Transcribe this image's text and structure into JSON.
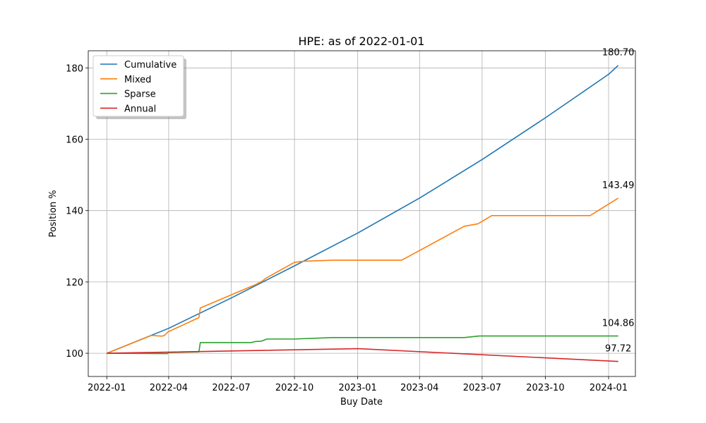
{
  "chart_data": {
    "type": "line",
    "title": "HPE: as of 2022-01-01",
    "xlabel": "Buy Date",
    "ylabel": "Position %",
    "x_ticks": [
      "2022-01",
      "2022-04",
      "2022-07",
      "2022-10",
      "2023-01",
      "2023-04",
      "2023-07",
      "2023-10",
      "2024-01"
    ],
    "y_ticks": [
      100,
      120,
      140,
      160,
      180
    ],
    "xlim": [
      "2021-12-05",
      "2024-02-09"
    ],
    "ylim": [
      93.5,
      184.8
    ],
    "grid": true,
    "legend_position": "top-left",
    "series": [
      {
        "name": "Cumulative",
        "color": "#1f77b4",
        "end_label": "180.70",
        "points": [
          [
            "2022-01-01",
            100.0
          ],
          [
            "2022-04-01",
            107.0
          ],
          [
            "2022-07-01",
            115.5
          ],
          [
            "2022-10-01",
            124.5
          ],
          [
            "2023-01-01",
            133.7
          ],
          [
            "2023-04-01",
            143.5
          ],
          [
            "2023-07-01",
            154.3
          ],
          [
            "2023-10-01",
            166.0
          ],
          [
            "2024-01-01",
            178.2
          ],
          [
            "2024-01-15",
            180.7
          ]
        ]
      },
      {
        "name": "Mixed",
        "color": "#ff7f0e",
        "end_label": "143.49",
        "points": [
          [
            "2022-01-01",
            100.0
          ],
          [
            "2022-03-07",
            105.0
          ],
          [
            "2022-03-22",
            104.8
          ],
          [
            "2022-03-26",
            105.0
          ],
          [
            "2022-03-31",
            106.0
          ],
          [
            "2022-05-15",
            110.0
          ],
          [
            "2022-05-17",
            112.7
          ],
          [
            "2022-07-27",
            118.5
          ],
          [
            "2022-08-05",
            119.2
          ],
          [
            "2022-08-15",
            120.2
          ],
          [
            "2022-08-20",
            121.0
          ],
          [
            "2022-10-01",
            125.5
          ],
          [
            "2022-10-15",
            125.8
          ],
          [
            "2022-11-25",
            126.1
          ],
          [
            "2023-03-06",
            126.1
          ],
          [
            "2023-06-05",
            135.6
          ],
          [
            "2023-06-25",
            136.3
          ],
          [
            "2023-07-15",
            138.6
          ],
          [
            "2023-12-05",
            138.6
          ],
          [
            "2024-01-15",
            143.49
          ]
        ]
      },
      {
        "name": "Sparse",
        "color": "#2ca02c",
        "end_label": "104.86",
        "points": [
          [
            "2022-01-01",
            100.0
          ],
          [
            "2022-03-30",
            99.9
          ],
          [
            "2022-04-01",
            100.2
          ],
          [
            "2022-05-15",
            100.4
          ],
          [
            "2022-05-17",
            103.0
          ],
          [
            "2022-07-30",
            103.0
          ],
          [
            "2022-08-05",
            103.3
          ],
          [
            "2022-08-14",
            103.4
          ],
          [
            "2022-08-22",
            104.0
          ],
          [
            "2022-10-01",
            104.0
          ],
          [
            "2022-11-25",
            104.4
          ],
          [
            "2023-06-05",
            104.4
          ],
          [
            "2023-06-27",
            104.86
          ],
          [
            "2024-01-15",
            104.86
          ]
        ]
      },
      {
        "name": "Annual",
        "color": "#d62728",
        "end_label": "97.72",
        "points": [
          [
            "2022-01-01",
            100.0
          ],
          [
            "2023-01-01",
            101.3
          ],
          [
            "2024-01-15",
            97.72
          ]
        ]
      }
    ]
  }
}
